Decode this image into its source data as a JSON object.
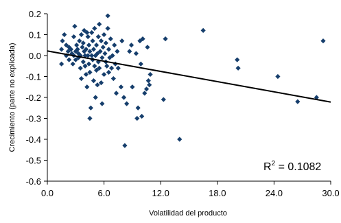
{
  "chart_data": {
    "type": "scatter",
    "xlabel": "Volatilidad del producto",
    "ylabel": "Crecimiento (parte no explicada)",
    "xlim": [
      0,
      30
    ],
    "ylim": [
      -0.6,
      0.2
    ],
    "x_ticks": [
      "0.0",
      "6.0",
      "12.0",
      "18.0",
      "24.0",
      "30.0"
    ],
    "y_ticks": [
      "0.2",
      "0.1",
      "0.0",
      "-0.1",
      "-0.2",
      "-0.3",
      "-0.4",
      "-0.5",
      "-0.6"
    ],
    "grid": false,
    "legend": "none",
    "marker_color": "#163E6C",
    "trendline": {
      "type": "linear",
      "color": "#000000",
      "points": [
        [
          0,
          0.022
        ],
        [
          30,
          -0.222
        ]
      ]
    },
    "annotation": {
      "r2_base": "R",
      "r2_sup": "2",
      "r2_value": " = 0.1082"
    },
    "series": [
      {
        "points": [
          [
            1.5,
            -0.04
          ],
          [
            1.5,
            0.03
          ],
          [
            1.6,
            0.07
          ],
          [
            1.8,
            0.1
          ],
          [
            2.0,
            0.0
          ],
          [
            2.0,
            0.05
          ],
          [
            2.2,
            0.02
          ],
          [
            2.3,
            -0.02
          ],
          [
            2.3,
            0.04
          ],
          [
            2.5,
            0.03
          ],
          [
            2.6,
            0.01
          ],
          [
            2.7,
            -0.04
          ],
          [
            2.8,
            0.0
          ],
          [
            2.8,
            0.09
          ],
          [
            2.9,
            0.14
          ],
          [
            3.0,
            -0.02
          ],
          [
            3.0,
            0.02
          ],
          [
            3.1,
            0.05
          ],
          [
            3.2,
            0.03
          ],
          [
            3.3,
            -0.01
          ],
          [
            3.3,
            0.01
          ],
          [
            3.4,
            0.07
          ],
          [
            3.5,
            -0.06
          ],
          [
            3.5,
            0.0
          ],
          [
            3.6,
            0.1
          ],
          [
            3.6,
            -0.11
          ],
          [
            3.7,
            0.04
          ],
          [
            3.8,
            -0.03
          ],
          [
            3.8,
            0.06
          ],
          [
            3.9,
            0.02
          ],
          [
            3.9,
            0.12
          ],
          [
            4.0,
            -0.05
          ],
          [
            4.0,
            0.0
          ],
          [
            4.1,
            -0.09
          ],
          [
            4.1,
            0.03
          ],
          [
            4.2,
            0.11
          ],
          [
            4.2,
            -0.15
          ],
          [
            4.3,
            0.0
          ],
          [
            4.3,
            0.09
          ],
          [
            4.4,
            -0.04
          ],
          [
            4.4,
            0.05
          ],
          [
            4.5,
            -0.08
          ],
          [
            4.5,
            0.02
          ],
          [
            4.5,
            -0.3
          ],
          [
            4.6,
            -0.25
          ],
          [
            4.7,
            0.0
          ],
          [
            4.7,
            0.11
          ],
          [
            4.8,
            -0.02
          ],
          [
            4.8,
            0.07
          ],
          [
            4.9,
            -0.12
          ],
          [
            4.9,
            0.03
          ],
          [
            5.0,
            -0.05
          ],
          [
            5.0,
            0.13
          ],
          [
            5.1,
            0.0
          ],
          [
            5.1,
            -0.2
          ],
          [
            5.2,
            -0.07
          ],
          [
            5.2,
            0.05
          ],
          [
            5.3,
            0.01
          ],
          [
            5.3,
            -0.14
          ],
          [
            5.4,
            0.09
          ],
          [
            5.4,
            -0.03
          ],
          [
            5.5,
            0.15
          ],
          [
            5.5,
            -0.06
          ],
          [
            5.6,
            0.02
          ],
          [
            5.7,
            -0.13
          ],
          [
            5.7,
            0.07
          ],
          [
            5.8,
            -0.01
          ],
          [
            5.8,
            -0.23
          ],
          [
            5.9,
            0.04
          ],
          [
            6.0,
            -0.09
          ],
          [
            6.0,
            0.1
          ],
          [
            6.1,
            0.01
          ],
          [
            6.2,
            -0.03
          ],
          [
            6.2,
            0.06
          ],
          [
            6.3,
            -0.05
          ],
          [
            6.4,
            0.13
          ],
          [
            6.4,
            0.19
          ],
          [
            6.5,
            -0.08
          ],
          [
            6.5,
            0.03
          ],
          [
            6.6,
            -0.01
          ],
          [
            6.7,
            0.08
          ],
          [
            6.8,
            -0.06
          ],
          [
            6.9,
            0.0
          ],
          [
            7.0,
            -0.11
          ],
          [
            7.1,
            0.05
          ],
          [
            7.2,
            -0.04
          ],
          [
            7.3,
            -0.18
          ],
          [
            7.4,
            0.02
          ],
          [
            7.5,
            -0.06
          ],
          [
            7.8,
            -0.15
          ],
          [
            7.9,
            0.07
          ],
          [
            8.1,
            -0.2
          ],
          [
            8.2,
            -0.43
          ],
          [
            8.4,
            -0.23
          ],
          [
            8.7,
            0.02
          ],
          [
            8.9,
            0.05
          ],
          [
            9.0,
            -0.15
          ],
          [
            9.4,
            0.01
          ],
          [
            9.5,
            -0.3
          ],
          [
            9.6,
            -0.25
          ],
          [
            9.8,
            0.07
          ],
          [
            9.9,
            -0.04
          ],
          [
            10.0,
            -0.29
          ],
          [
            10.1,
            0.08
          ],
          [
            10.3,
            -0.18
          ],
          [
            10.5,
            -0.16
          ],
          [
            10.6,
            0.04
          ],
          [
            10.7,
            -0.12
          ],
          [
            10.8,
            -0.14
          ],
          [
            10.9,
            -0.09
          ],
          [
            12.3,
            -0.21
          ],
          [
            12.5,
            0.08
          ],
          [
            14.0,
            -0.4
          ],
          [
            16.5,
            0.12
          ],
          [
            20.1,
            -0.02
          ],
          [
            20.2,
            -0.06
          ],
          [
            24.4,
            -0.1
          ],
          [
            26.5,
            -0.22
          ],
          [
            28.5,
            -0.2
          ],
          [
            29.2,
            0.07
          ]
        ]
      }
    ]
  }
}
